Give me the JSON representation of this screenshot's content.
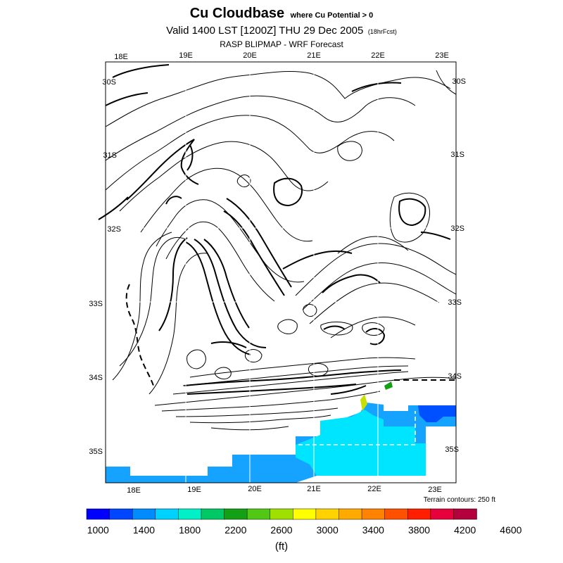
{
  "header": {
    "title": "Cu Cloudbase",
    "title_note": "where Cu Potential > 0",
    "valid": "Valid 1400 LST [1200Z] THU 29 Dec 2005",
    "forecast_note": "(18hrFcst)",
    "product": "RASP BLIPMAP - WRF Forecast"
  },
  "map": {
    "top_lon_labels": [
      "18E",
      "19E",
      "20E",
      "21E",
      "22E",
      "23E"
    ],
    "bottom_lon_labels": [
      "18E",
      "19E",
      "20E",
      "21E",
      "22E",
      "23E"
    ],
    "left_lat_labels": [
      "30S",
      "31S",
      "32S",
      "33S",
      "34S",
      "35S"
    ],
    "right_lat_labels": [
      "30S",
      "31S",
      "32S",
      "33S",
      "34S",
      "35S"
    ],
    "terrain_note": "Terrain contours: 250 ft",
    "fill_colors": [
      "#16a3ff",
      "#00e5ff",
      "#0050ff",
      "#14c8ff"
    ]
  },
  "legend": {
    "labels": [
      "1000",
      "1400",
      "1800",
      "2200",
      "2600",
      "3000",
      "3400",
      "3800",
      "4200",
      "4600"
    ],
    "colors": [
      "#0000ff",
      "#0046ff",
      "#008cff",
      "#00d2ff",
      "#00f0c8",
      "#00c864",
      "#14a014",
      "#50c814",
      "#a0e000",
      "#ffff00",
      "#ffd200",
      "#ffaa00",
      "#ff8200",
      "#ff5000",
      "#ff1e00",
      "#e6003c",
      "#b4003c"
    ],
    "unit": "(ft)"
  }
}
